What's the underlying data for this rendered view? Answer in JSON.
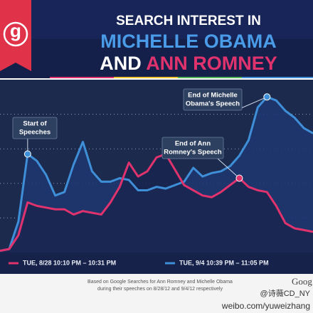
{
  "chart_data": {
    "type": "line",
    "logo": "g",
    "title": [
      "SEARCH INTEREST IN",
      "MICHELLE OBAMA",
      "AND",
      "ANN ROMNEY"
    ],
    "ylim": [
      0,
      100
    ],
    "grid": true,
    "series": [
      {
        "name": "TUE, 9/4 10:39 PM – 11:05 PM",
        "color": "#3f8fd8",
        "values": [
          1,
          2,
          18,
          57,
          53,
          45,
          33,
          35,
          51,
          64,
          47,
          41,
          41,
          43,
          42,
          36,
          36,
          38,
          37,
          39,
          41,
          49,
          44,
          46,
          47,
          50,
          56,
          65,
          84,
          90,
          88,
          82,
          78,
          72,
          69
        ]
      },
      {
        "name": "TUE, 8/28 10:10 PM – 10:31 PM",
        "color": "#e0336e",
        "values": [
          1,
          2,
          10,
          29,
          27,
          26,
          25,
          25,
          22,
          24,
          23,
          22,
          29,
          38,
          52,
          44,
          47,
          55,
          57,
          48,
          39,
          36,
          33,
          32,
          35,
          39,
          43,
          38,
          36,
          35,
          27,
          17,
          14,
          13,
          12
        ]
      }
    ],
    "annotations": [
      {
        "lines": [
          "Start of",
          "Speeches"
        ]
      },
      {
        "lines": [
          "End of Ann",
          "Romney's Speech"
        ]
      },
      {
        "lines": [
          "End of Michelle",
          "Obama's Speech"
        ]
      }
    ],
    "footnote": [
      "Based on Google Searches for Ann Romney and Michelle Obama",
      "during their speeches on 8/28/12 and 9/4/12 respectively"
    ],
    "brand": "Goog",
    "watermark": [
      "@诗薇CD_NY",
      "weibo.com/yuweizhang"
    ]
  }
}
